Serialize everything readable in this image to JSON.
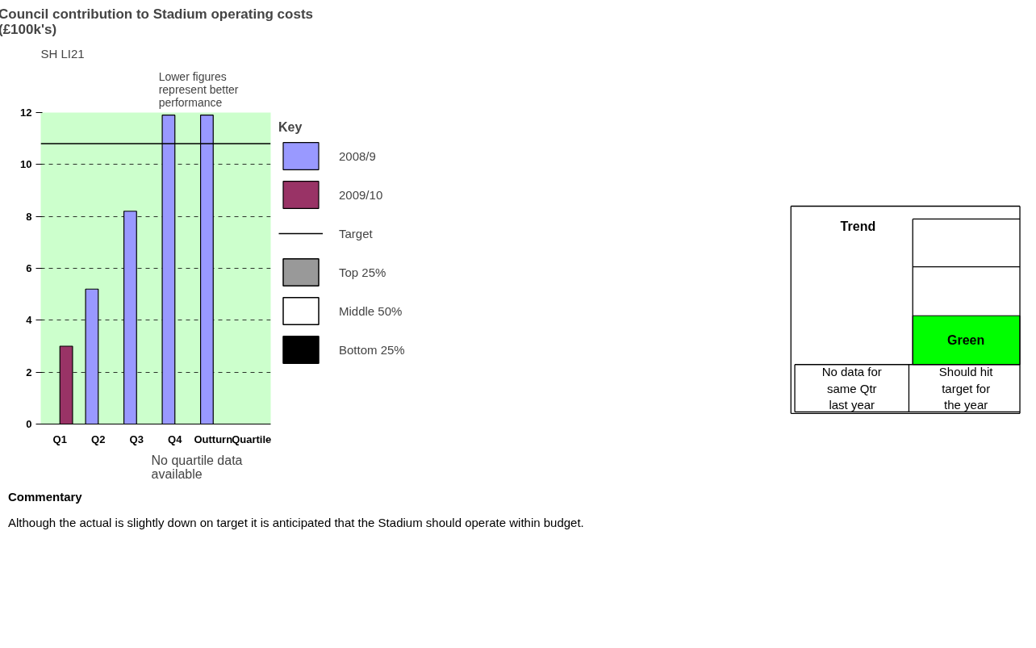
{
  "chart_data": {
    "type": "bar",
    "title": "Council contribution to Stadium operating costs\n(£100k's)",
    "categories": [
      "Q1",
      "Q2",
      "Q3",
      "Q4",
      "Outturn",
      "Quartile"
    ],
    "series": [
      {
        "name": "2008/9",
        "color": "#9999ff",
        "values": [
          null,
          5.2,
          8.2,
          11.9,
          11.9,
          null
        ]
      },
      {
        "name": "2009/10",
        "color": "#993366",
        "values": [
          3.0,
          null,
          null,
          null,
          null,
          null
        ]
      },
      {
        "name": "Top 25%",
        "color": "#999999",
        "values": [
          null,
          null,
          null,
          null,
          null,
          null
        ]
      },
      {
        "name": "Middle 50%",
        "color": "#ffffff",
        "values": [
          null,
          null,
          null,
          null,
          null,
          null
        ]
      },
      {
        "name": "Bottom 25%",
        "color": "#000000",
        "values": [
          null,
          null,
          null,
          null,
          null,
          null
        ]
      }
    ],
    "ylim": [
      0,
      12
    ],
    "yticks": [
      0,
      2,
      4,
      6,
      8,
      10,
      12
    ],
    "grid": "y",
    "legend": "right",
    "legend_title": "Key",
    "ref_lines": [
      {
        "axis": "y",
        "value": 10.8,
        "label": "Target",
        "color": "#000000"
      }
    ],
    "annotations": [
      "SH LI21",
      "Lower figures represent better performance",
      "No quartile data available",
      "Trend",
      "Green",
      "No data for same Qtr last year",
      "Should hit target for the year",
      "Commentary",
      "Although the actual is slightly down on target it is anticipated that the Stadium should operate within budget."
    ]
  }
}
